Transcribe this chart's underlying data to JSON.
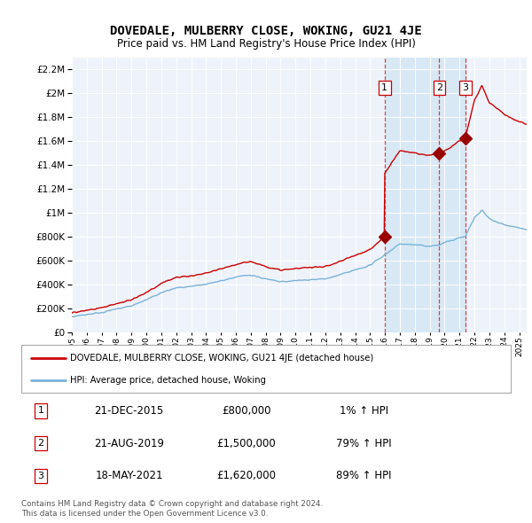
{
  "title": "DOVEDALE, MULBERRY CLOSE, WOKING, GU21 4JE",
  "subtitle": "Price paid vs. HM Land Registry's House Price Index (HPI)",
  "legend_line1": "DOVEDALE, MULBERRY CLOSE, WOKING, GU21 4JE (detached house)",
  "legend_line2": "HPI: Average price, detached house, Woking",
  "transactions": [
    {
      "num": 1,
      "date": "21-DEC-2015",
      "price": 800000,
      "hpi_pct": "1%",
      "year": 2015.97
    },
    {
      "num": 2,
      "date": "21-AUG-2019",
      "price": 1500000,
      "hpi_pct": "79%",
      "year": 2019.64
    },
    {
      "num": 3,
      "date": "18-MAY-2021",
      "price": 1620000,
      "hpi_pct": "89%",
      "year": 2021.38
    }
  ],
  "footer1": "Contains HM Land Registry data © Crown copyright and database right 2024.",
  "footer2": "This data is licensed under the Open Government Licence v3.0.",
  "hpi_color": "#7ab3d9",
  "price_color": "#cc0000",
  "marker_color": "#990000",
  "dashed_color": "#cc0000",
  "shade_color": "#d8e8f5",
  "background_chart": "#eef3fb",
  "background_fig": "#ffffff",
  "ylim_max": 2300000,
  "ylim_min": 0,
  "xlim_min": 1995.0,
  "xlim_max": 2025.5
}
